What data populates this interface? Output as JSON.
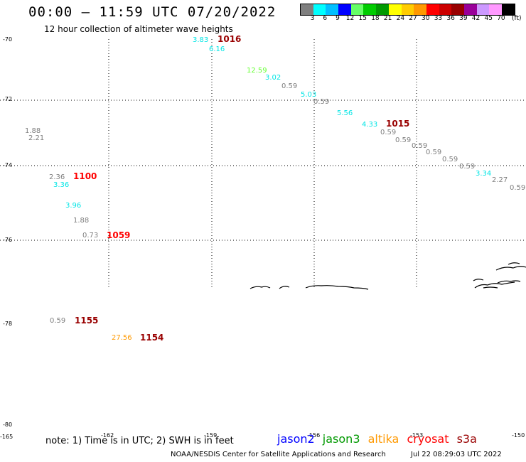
{
  "header": {
    "title": "00:00 – 11:59 UTC 07/20/2022",
    "subtitle": "12 hour collection of altimeter wave heights"
  },
  "legend": {
    "unit": "(ft)",
    "ticks": [
      "3",
      "6",
      "9",
      "12",
      "15",
      "18",
      "21",
      "24",
      "27",
      "30",
      "33",
      "36",
      "39",
      "42",
      "45",
      "70"
    ],
    "colors": [
      "#7f7f7f",
      "#00ffff",
      "#00bfff",
      "#0000ff",
      "#66ff66",
      "#00cc00",
      "#009900",
      "#ffff00",
      "#ffcc00",
      "#ff9900",
      "#ff0000",
      "#cc0000",
      "#990000",
      "#990099",
      "#cc99ff",
      "#ff99ff",
      "#000000"
    ]
  },
  "map": {
    "lat_labels": [
      "-70",
      "-72",
      "-74",
      "-76",
      "-78",
      "-80"
    ],
    "lon_labels": [
      "-165",
      "-162",
      "-159",
      "-156",
      "-153",
      "-150"
    ],
    "wave_heights": [
      {
        "text": "3.83",
        "color": "#00e5e5"
      },
      {
        "text": "6.16",
        "color": "#00e5e5"
      },
      {
        "text": "12.59",
        "color": "#66ff33"
      },
      {
        "text": "3.02",
        "color": "#00e5e5"
      },
      {
        "text": "0.59",
        "color": "#7f7f7f"
      },
      {
        "text": "5.03",
        "color": "#00e5e5"
      },
      {
        "text": "0.59",
        "color": "#7f7f7f"
      },
      {
        "text": "5.56",
        "color": "#00e5e5"
      },
      {
        "text": "4.33",
        "color": "#00e5e5"
      },
      {
        "text": "0.59",
        "color": "#7f7f7f"
      },
      {
        "text": "0.59",
        "color": "#7f7f7f"
      },
      {
        "text": "0.59",
        "color": "#7f7f7f"
      },
      {
        "text": "0.59",
        "color": "#7f7f7f"
      },
      {
        "text": "0.59",
        "color": "#7f7f7f"
      },
      {
        "text": "0.59",
        "color": "#7f7f7f"
      },
      {
        "text": "3.34",
        "color": "#00e5e5"
      },
      {
        "text": "2.27",
        "color": "#7f7f7f"
      },
      {
        "text": "0.59",
        "color": "#7f7f7f"
      },
      {
        "text": "1.88",
        "color": "#7f7f7f"
      },
      {
        "text": "2.21",
        "color": "#7f7f7f"
      },
      {
        "text": "2.36",
        "color": "#7f7f7f"
      },
      {
        "text": "3.36",
        "color": "#00e5e5"
      },
      {
        "text": "3.96",
        "color": "#00e5e5"
      },
      {
        "text": "1.88",
        "color": "#7f7f7f"
      },
      {
        "text": "0.73",
        "color": "#7f7f7f"
      },
      {
        "text": "0.59",
        "color": "#7f7f7f"
      },
      {
        "text": "27.56",
        "color": "#ff9900"
      }
    ],
    "pass_times": [
      {
        "text": "1016",
        "color": "#990000"
      },
      {
        "text": "1015",
        "color": "#990000"
      },
      {
        "text": "1100",
        "color": "#ff0000"
      },
      {
        "text": "1059",
        "color": "#ff0000"
      },
      {
        "text": "1155",
        "color": "#990000"
      },
      {
        "text": "1154",
        "color": "#990000"
      }
    ]
  },
  "footer": {
    "note": "note:  1) Time is in UTC;  2) SWH is in feet",
    "missions": [
      {
        "text": "jason2",
        "color": "#0000ff"
      },
      {
        "text": "jason3",
        "color": "#009900"
      },
      {
        "text": "altika",
        "color": "#ff9900"
      },
      {
        "text": "cryosat",
        "color": "#ff0000"
      },
      {
        "text": "s3a",
        "color": "#990000"
      }
    ],
    "credit": "NOAA/NESDIS Center for Satellite Applications and Research",
    "timestamp": "Jul 22 08:29:03 UTC 2022"
  }
}
